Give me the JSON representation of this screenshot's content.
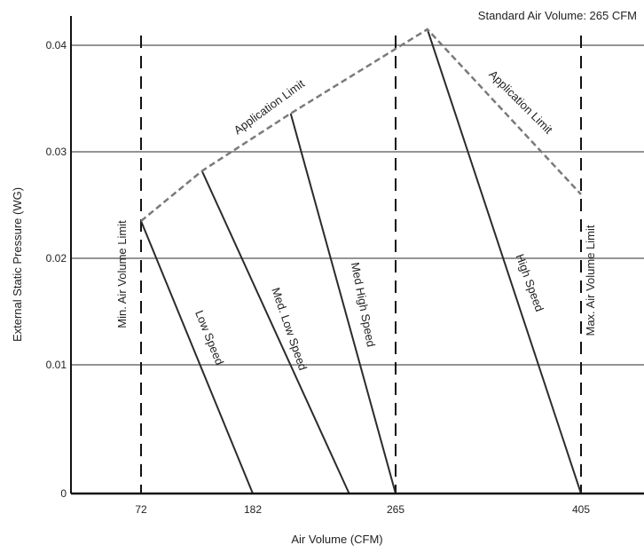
{
  "chart_data": {
    "type": "line",
    "title": "",
    "xlabel": "Air Volume (CFM)",
    "ylabel": "External Static Pressure (WG)",
    "x_ticks": [
      "72",
      "182",
      "265",
      "405"
    ],
    "y_ticks": [
      "0",
      "0.01",
      "0.02",
      "0.03",
      "0.04"
    ],
    "grid": "horizontal",
    "note": "Standard Air Volume: 265 CFM",
    "vertical_limits": [
      {
        "name": "min",
        "label": "Min. Air Volume Limit",
        "x": 72
      },
      {
        "name": "standard",
        "label": "",
        "x": 265
      },
      {
        "name": "max",
        "label": "Max. Air Volume Limit",
        "x": 405
      }
    ],
    "application_limit": {
      "label_left": "Application Limit",
      "label_right": "Application Limit",
      "points": [
        [
          72,
          0.0235
        ],
        [
          132,
          0.0282
        ],
        [
          204,
          0.0336
        ],
        [
          289,
          0.0415
        ],
        [
          405,
          0.026
        ]
      ]
    },
    "series": [
      {
        "name": "Low Speed",
        "points": [
          [
            72,
            0.0235
          ],
          [
            182,
            0
          ]
        ]
      },
      {
        "name": "Med. Low Speed",
        "points": [
          [
            132,
            0.0282
          ],
          [
            238,
            0
          ]
        ]
      },
      {
        "name": "Med High Speed",
        "points": [
          [
            204,
            0.0336
          ],
          [
            265,
            0
          ]
        ]
      },
      {
        "name": "High Speed",
        "points": [
          [
            289,
            0.0415
          ],
          [
            405,
            0
          ]
        ]
      }
    ],
    "colors": {
      "line": "#2b2b2b",
      "grid": "#555555",
      "dashed": "#7a7a7a"
    }
  }
}
